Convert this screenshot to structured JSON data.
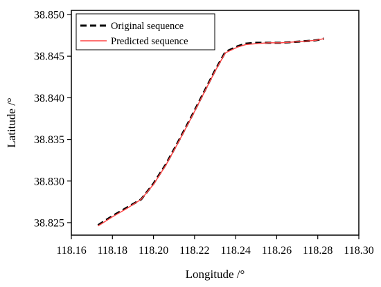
{
  "chart_data": {
    "type": "line",
    "xlabel": "Longitude /°",
    "ylabel": "Latitude /°",
    "xlim": [
      118.16,
      118.3
    ],
    "ylim": [
      38.8235,
      38.8505
    ],
    "xticks": [
      "118.16",
      "118.18",
      "118.20",
      "118.22",
      "118.24",
      "118.26",
      "118.28",
      "118.30"
    ],
    "xtick_values": [
      118.16,
      118.18,
      118.2,
      118.22,
      118.24,
      118.26,
      118.28,
      118.3
    ],
    "yticks": [
      "38.825",
      "38.830",
      "38.835",
      "38.840",
      "38.845",
      "38.850"
    ],
    "ytick_values": [
      38.825,
      38.83,
      38.835,
      38.84,
      38.845,
      38.85
    ],
    "grid": false,
    "legend_position": "top-left",
    "series": [
      {
        "name": "Original sequence",
        "color": "#000000",
        "style": "dashed",
        "x": [
          118.173,
          118.18,
          118.187,
          118.194,
          118.2,
          118.206,
          118.212,
          118.218,
          118.224,
          118.23,
          118.235,
          118.241,
          118.245,
          118.25,
          118.256,
          118.262,
          118.268,
          118.274,
          118.279,
          118.283
        ],
        "y": [
          38.8247,
          38.8258,
          38.8268,
          38.8278,
          38.8297,
          38.832,
          38.8347,
          38.8375,
          38.8404,
          38.8433,
          38.8455,
          38.8462,
          38.8465,
          38.8466,
          38.8466,
          38.8466,
          38.8467,
          38.8468,
          38.8469,
          38.8471
        ]
      },
      {
        "name": "Predicted sequence",
        "color": "#ff4444",
        "style": "solid",
        "x": [
          118.173,
          118.18,
          118.187,
          118.194,
          118.2,
          118.206,
          118.212,
          118.218,
          118.224,
          118.23,
          118.235,
          118.241,
          118.245,
          118.25,
          118.256,
          118.262,
          118.268,
          118.274,
          118.279,
          118.283
        ],
        "y": [
          38.8246,
          38.8257,
          38.8267,
          38.8278,
          38.8296,
          38.8319,
          38.8346,
          38.8374,
          38.8403,
          38.8432,
          38.8454,
          38.8461,
          38.8464,
          38.8465,
          38.8466,
          38.8466,
          38.8467,
          38.8468,
          38.8469,
          38.8471
        ]
      }
    ]
  }
}
